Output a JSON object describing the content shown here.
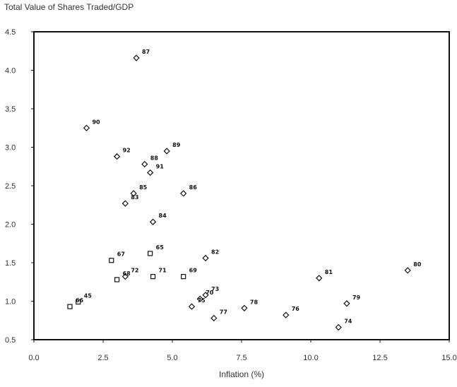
{
  "chart_data": {
    "type": "scatter",
    "title": "Total Value of Shares Traded/GDP",
    "xlabel": "Inflation (%)",
    "ylabel": "",
    "xlim": [
      0,
      15
    ],
    "ylim": [
      0.5,
      4.5
    ],
    "x_ticks": [
      "0.0",
      "2.5",
      "5.0",
      "7.5",
      "10.0",
      "12.5",
      "15.0"
    ],
    "y_ticks": [
      "0.5",
      "1.0",
      "1.5",
      "2.0",
      "2.5",
      "3.0",
      "3.5",
      "4.0",
      "4.5"
    ],
    "grid": false,
    "points": [
      {
        "label": "87",
        "x": 3.7,
        "y": 4.16,
        "marker": "diamond"
      },
      {
        "label": "90",
        "x": 1.9,
        "y": 3.25,
        "marker": "diamond"
      },
      {
        "label": "92",
        "x": 3.0,
        "y": 2.88,
        "marker": "diamond"
      },
      {
        "label": "89",
        "x": 4.8,
        "y": 2.95,
        "marker": "diamond"
      },
      {
        "label": "88",
        "x": 4.0,
        "y": 2.78,
        "marker": "diamond"
      },
      {
        "label": "91",
        "x": 4.2,
        "y": 2.67,
        "marker": "diamond"
      },
      {
        "label": "85",
        "x": 3.6,
        "y": 2.4,
        "marker": "diamond"
      },
      {
        "label": "86",
        "x": 5.4,
        "y": 2.4,
        "marker": "diamond"
      },
      {
        "label": "83",
        "x": 3.3,
        "y": 2.27,
        "marker": "diamond"
      },
      {
        "label": "84",
        "x": 4.3,
        "y": 2.03,
        "marker": "diamond"
      },
      {
        "label": "65",
        "x": 4.2,
        "y": 1.62,
        "marker": "square"
      },
      {
        "label": "67",
        "x": 2.8,
        "y": 1.53,
        "marker": "square"
      },
      {
        "label": "82",
        "x": 6.2,
        "y": 1.56,
        "marker": "diamond"
      },
      {
        "label": "72",
        "x": 3.3,
        "y": 1.32,
        "marker": "diamond"
      },
      {
        "label": "68",
        "x": 3.0,
        "y": 1.28,
        "marker": "square"
      },
      {
        "label": "71",
        "x": 4.3,
        "y": 1.32,
        "marker": "square"
      },
      {
        "label": "69",
        "x": 5.4,
        "y": 1.32,
        "marker": "square"
      },
      {
        "label": "81",
        "x": 10.3,
        "y": 1.3,
        "marker": "diamond"
      },
      {
        "label": "80",
        "x": 13.5,
        "y": 1.4,
        "marker": "diamond"
      },
      {
        "label": "66",
        "x": 1.3,
        "y": 0.93,
        "marker": "square"
      },
      {
        "label": "45",
        "x": 1.6,
        "y": 0.99,
        "marker": "square"
      },
      {
        "label": "73",
        "x": 6.2,
        "y": 1.08,
        "marker": "diamond"
      },
      {
        "label": "70",
        "x": 6.0,
        "y": 1.03,
        "marker": "diamond"
      },
      {
        "label": "75",
        "x": 5.7,
        "y": 0.93,
        "marker": "diamond"
      },
      {
        "label": "78",
        "x": 7.6,
        "y": 0.91,
        "marker": "diamond"
      },
      {
        "label": "77",
        "x": 6.5,
        "y": 0.78,
        "marker": "diamond"
      },
      {
        "label": "76",
        "x": 9.1,
        "y": 0.82,
        "marker": "diamond"
      },
      {
        "label": "79",
        "x": 11.3,
        "y": 0.97,
        "marker": "diamond"
      },
      {
        "label": "74",
        "x": 11.0,
        "y": 0.66,
        "marker": "diamond"
      }
    ]
  }
}
